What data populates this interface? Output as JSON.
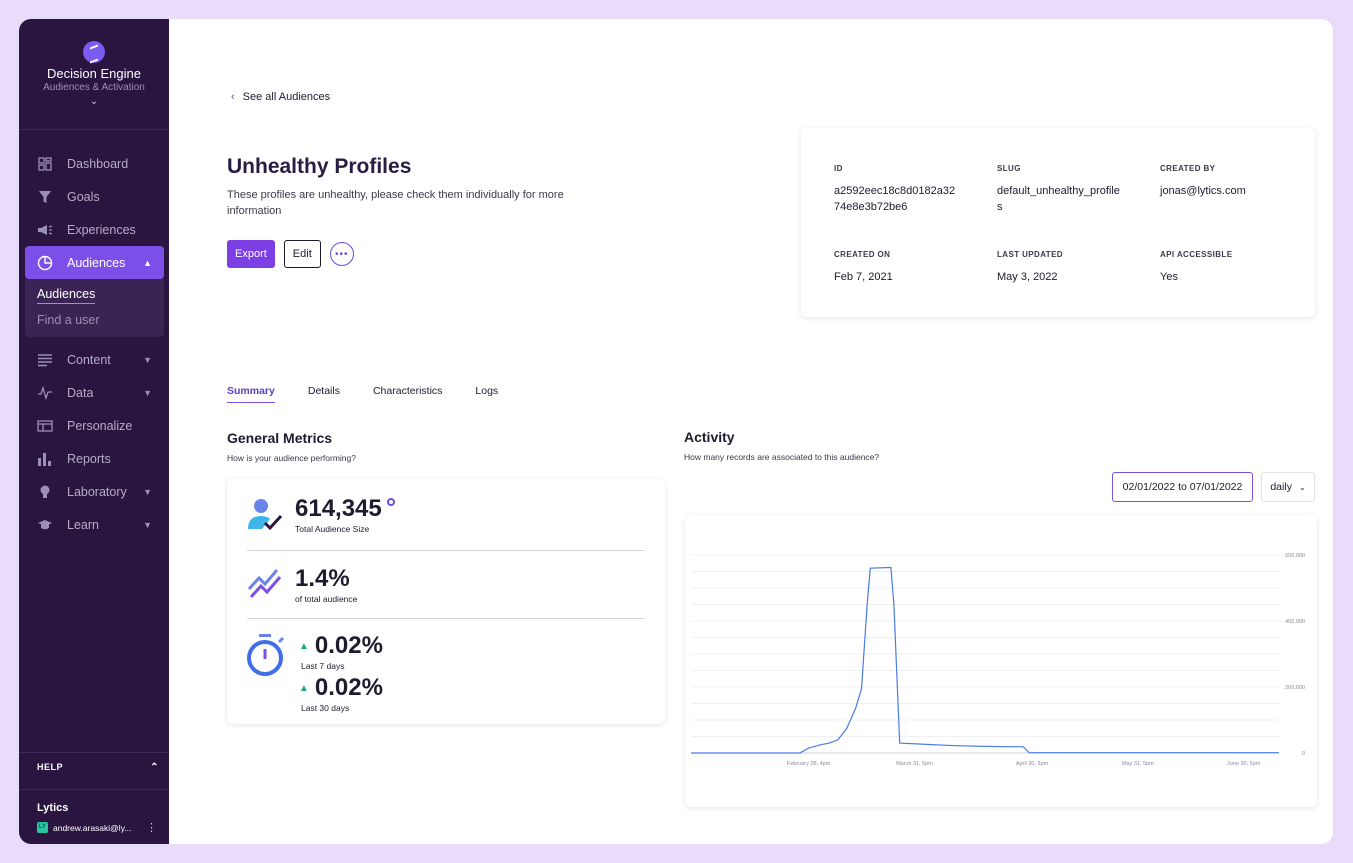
{
  "sidebar": {
    "brand_title": "Decision Engine",
    "brand_subtitle": "Audiences & Activation",
    "items": [
      {
        "label": "Dashboard",
        "icon": "dashboard-icon"
      },
      {
        "label": "Goals",
        "icon": "funnel-icon"
      },
      {
        "label": "Experiences",
        "icon": "megaphone-icon"
      },
      {
        "label": "Audiences",
        "icon": "pie-chart-icon",
        "active": true
      },
      {
        "label": "Content",
        "icon": "lines-icon"
      },
      {
        "label": "Data",
        "icon": "pulse-icon"
      },
      {
        "label": "Personalize",
        "icon": "window-icon"
      },
      {
        "label": "Reports",
        "icon": "bars-icon"
      },
      {
        "label": "Laboratory",
        "icon": "bulb-icon"
      },
      {
        "label": "Learn",
        "icon": "graduation-cap-icon"
      }
    ],
    "sub_items": [
      {
        "label": "Audiences",
        "active": true
      },
      {
        "label": "Find a user"
      }
    ],
    "help_label": "HELP",
    "account_name": "Lytics",
    "account_user": "andrew.arasaki@ly...",
    "avatar_initials": "LY"
  },
  "header": {
    "back_label": "See all Audiences",
    "title": "Unhealthy Profiles",
    "description": "These profiles are unhealthy, please check them individually for more information",
    "export_label": "Export",
    "edit_label": "Edit"
  },
  "meta": {
    "id_label": "ID",
    "id_value": "a2592eec18c8d0182a3274e8e3b72be6",
    "slug_label": "SLUG",
    "slug_value": "default_unhealthy_profiles",
    "created_by_label": "CREATED BY",
    "created_by_value": "jonas@lytics.com",
    "created_on_label": "CREATED ON",
    "created_on_value": "Feb 7, 2021",
    "last_updated_label": "LAST UPDATED",
    "last_updated_value": "May 3, 2022",
    "api_label": "API ACCESSIBLE",
    "api_value": "Yes"
  },
  "tabs": [
    "Summary",
    "Details",
    "Characteristics",
    "Logs"
  ],
  "metrics": {
    "title": "General Metrics",
    "subtitle": "How is your audience performing?",
    "size_value": "614,345",
    "size_label": "Total Audience Size",
    "pct_value": "1.4%",
    "pct_label": "of total audience",
    "week_value": "0.02%",
    "week_label": "Last 7 days",
    "month_value": "0.02%",
    "month_label": "Last 30 days"
  },
  "activity": {
    "title": "Activity",
    "subtitle": "How many records are associated to this audience?",
    "date_range": "02/01/2022 to 07/01/2022",
    "granularity": "daily"
  },
  "colors": {
    "sidebar_bg": "#2a1540",
    "accent": "#7b3fe4",
    "line": "#4a7bea",
    "positive": "#1fa87a"
  },
  "chart_data": {
    "type": "line",
    "y_ticks": [
      "0",
      "200,000",
      "400,000",
      "600,000"
    ],
    "ylim": [
      0,
      600000
    ],
    "x_ticks": [
      "February 28, 4pm",
      "March 31, 5pm",
      "April 30, 5pm",
      "May 31, 5pm",
      "June 30, 5pm"
    ],
    "x_tick_positions": [
      0.2,
      0.38,
      0.58,
      0.76,
      0.94
    ],
    "points": [
      [
        0.0,
        0
      ],
      [
        0.185,
        0
      ],
      [
        0.2,
        15000
      ],
      [
        0.22,
        25000
      ],
      [
        0.235,
        30000
      ],
      [
        0.25,
        40000
      ],
      [
        0.265,
        75000
      ],
      [
        0.28,
        135000
      ],
      [
        0.29,
        195000
      ],
      [
        0.3,
        460000
      ],
      [
        0.305,
        560000
      ],
      [
        0.34,
        562000
      ],
      [
        0.345,
        450000
      ],
      [
        0.355,
        30000
      ],
      [
        0.4,
        26000
      ],
      [
        0.45,
        22000
      ],
      [
        0.5,
        20000
      ],
      [
        0.54,
        19000
      ],
      [
        0.565,
        19000
      ],
      [
        0.575,
        1000
      ],
      [
        0.7,
        1000
      ],
      [
        1.0,
        1000
      ]
    ]
  }
}
